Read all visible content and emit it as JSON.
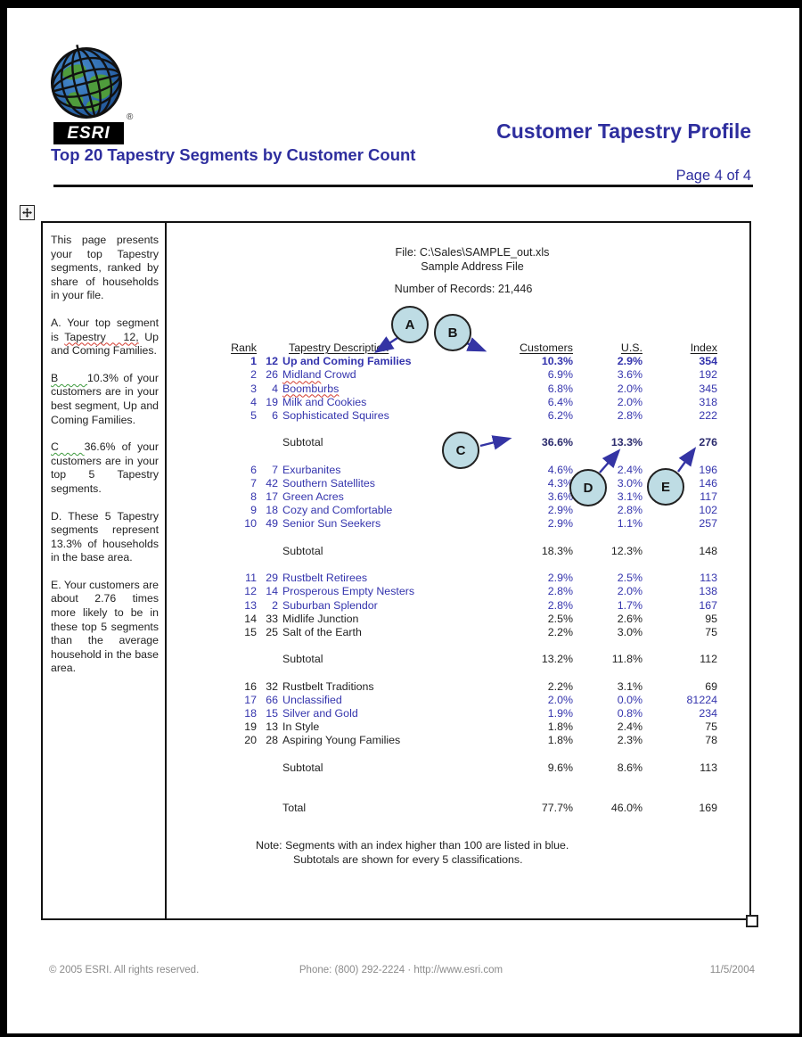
{
  "header": {
    "logo_text": "ESRI",
    "registered_mark": "®",
    "left_title": "Top 20 Tapestry Segments by Customer Count",
    "right_title": "Customer Tapestry Profile",
    "page_indicator": "Page 4 of 4"
  },
  "sidebar": {
    "paragraphs": [
      {
        "parts": [
          {
            "text": "This page presents your top Tapestry segments, ranked by share of households in your file."
          }
        ]
      },
      {
        "parts": [
          {
            "text": "A.  Your top segment is "
          },
          {
            "text": "Tapestry   12,",
            "wavy": "red"
          },
          {
            "text": " Up and Coming Families."
          }
        ]
      },
      {
        "parts": [
          {
            "text": "B      ",
            "wavy": "green"
          },
          {
            "text": "10.3% of your customers are in your best segment, Up and Coming Families."
          }
        ]
      },
      {
        "parts": [
          {
            "text": "C    ",
            "wavy": "green"
          },
          {
            "text": "36.6% of your customers are in your top 5 Tapestry segments."
          }
        ]
      },
      {
        "parts": [
          {
            "text": "D.  These 5 Tapestry segments represent 13.3% of households in the base area."
          }
        ]
      },
      {
        "parts": [
          {
            "text": "E.  Your customers are about 2.76 times more likely to be in these top 5 segments than the average household in the base area."
          }
        ]
      }
    ]
  },
  "document": {
    "file_line": "File: C:\\Sales\\SAMPLE_out.xls",
    "file_subline": "Sample Address File",
    "records_line": "Number of Records: 21,446"
  },
  "table": {
    "headers": {
      "rank": "Rank",
      "description": "Tapestry Description",
      "customers": "Customers",
      "us": "U.S.",
      "index": "Index"
    },
    "rows": [
      {
        "type": "data",
        "rank": "1",
        "code": "12",
        "desc": "Up and Coming Families",
        "customers": "10.3%",
        "us": "2.9%",
        "index": "354",
        "color": "blue",
        "bold": true
      },
      {
        "type": "data",
        "rank": "2",
        "code": "26",
        "desc": "Midland Crowd",
        "wavy_word": "Midland",
        "customers": "6.9%",
        "us": "3.6%",
        "index": "192",
        "color": "blue"
      },
      {
        "type": "data",
        "rank": "3",
        "code": "4",
        "desc": "Boomburbs",
        "wavy_word": "Boomburbs",
        "customers": "6.8%",
        "us": "2.0%",
        "index": "345",
        "color": "blue"
      },
      {
        "type": "data",
        "rank": "4",
        "code": "19",
        "desc": "Milk and Cookies",
        "customers": "6.4%",
        "us": "2.0%",
        "index": "318",
        "color": "blue"
      },
      {
        "type": "data",
        "rank": "5",
        "code": "6",
        "desc": "Sophisticated Squires",
        "customers": "6.2%",
        "us": "2.8%",
        "index": "222",
        "color": "blue"
      },
      {
        "type": "gap"
      },
      {
        "type": "subtotal",
        "label": "Subtotal",
        "customers": "36.6%",
        "us": "13.3%",
        "index": "276",
        "emphasis": true
      },
      {
        "type": "gap"
      },
      {
        "type": "data",
        "rank": "6",
        "code": "7",
        "desc": "Exurbanites",
        "customers": "4.6%",
        "us": "2.4%",
        "index": "196",
        "color": "blue"
      },
      {
        "type": "data",
        "rank": "7",
        "code": "42",
        "desc": "Southern Satellites",
        "customers": "4.3%",
        "us": "3.0%",
        "index": "146",
        "color": "blue"
      },
      {
        "type": "data",
        "rank": "8",
        "code": "17",
        "desc": "Green Acres",
        "customers": "3.6%",
        "us": "3.1%",
        "index": "117",
        "color": "blue"
      },
      {
        "type": "data",
        "rank": "9",
        "code": "18",
        "desc": "Cozy and Comfortable",
        "customers": "2.9%",
        "us": "2.8%",
        "index": "102",
        "color": "blue"
      },
      {
        "type": "data",
        "rank": "10",
        "code": "49",
        "desc": "Senior Sun Seekers",
        "customers": "2.9%",
        "us": "1.1%",
        "index": "257",
        "color": "blue"
      },
      {
        "type": "gap"
      },
      {
        "type": "subtotal",
        "label": "Subtotal",
        "customers": "18.3%",
        "us": "12.3%",
        "index": "148"
      },
      {
        "type": "gap"
      },
      {
        "type": "data",
        "rank": "11",
        "code": "29",
        "desc": "Rustbelt Retirees",
        "customers": "2.9%",
        "us": "2.5%",
        "index": "113",
        "color": "blue"
      },
      {
        "type": "data",
        "rank": "12",
        "code": "14",
        "desc": "Prosperous Empty Nesters",
        "customers": "2.8%",
        "us": "2.0%",
        "index": "138",
        "color": "blue"
      },
      {
        "type": "data",
        "rank": "13",
        "code": "2",
        "desc": "Suburban Splendor",
        "customers": "2.8%",
        "us": "1.7%",
        "index": "167",
        "color": "blue"
      },
      {
        "type": "data",
        "rank": "14",
        "code": "33",
        "desc": "Midlife Junction",
        "customers": "2.5%",
        "us": "2.6%",
        "index": "95",
        "color": "black"
      },
      {
        "type": "data",
        "rank": "15",
        "code": "25",
        "desc": "Salt of the Earth",
        "customers": "2.2%",
        "us": "3.0%",
        "index": "75",
        "color": "black"
      },
      {
        "type": "gap"
      },
      {
        "type": "subtotal",
        "label": "Subtotal",
        "customers": "13.2%",
        "us": "11.8%",
        "index": "112"
      },
      {
        "type": "gap"
      },
      {
        "type": "data",
        "rank": "16",
        "code": "32",
        "desc": "Rustbelt Traditions",
        "customers": "2.2%",
        "us": "3.1%",
        "index": "69",
        "color": "black"
      },
      {
        "type": "data",
        "rank": "17",
        "code": "66",
        "desc": "Unclassified",
        "customers": "2.0%",
        "us": "0.0%",
        "index": "81224",
        "color": "blue"
      },
      {
        "type": "data",
        "rank": "18",
        "code": "15",
        "desc": "Silver and Gold",
        "customers": "1.9%",
        "us": "0.8%",
        "index": "234",
        "color": "blue"
      },
      {
        "type": "data",
        "rank": "19",
        "code": "13",
        "desc": "In Style",
        "customers": "1.8%",
        "us": "2.4%",
        "index": "75",
        "color": "black"
      },
      {
        "type": "data",
        "rank": "20",
        "code": "28",
        "desc": "Aspiring Young Families",
        "customers": "1.8%",
        "us": "2.3%",
        "index": "78",
        "color": "black"
      },
      {
        "type": "gap"
      },
      {
        "type": "subtotal",
        "label": "Subtotal",
        "customers": "9.6%",
        "us": "8.6%",
        "index": "113"
      },
      {
        "type": "gap"
      },
      {
        "type": "gap"
      },
      {
        "type": "total",
        "label": "Total",
        "customers": "77.7%",
        "us": "46.0%",
        "index": "169"
      }
    ],
    "note_label": "Note:",
    "note_lines": [
      "Segments with an index higher than 100 are listed in blue.",
      "Subtotals are shown for every 5 classifications."
    ]
  },
  "annotations": [
    {
      "letter": "A"
    },
    {
      "letter": "B"
    },
    {
      "letter": "C"
    },
    {
      "letter": "D"
    },
    {
      "letter": "E"
    }
  ],
  "colors": {
    "title_blue": "#2e2e9e",
    "table_blue": "#3434ad",
    "emphasis_navy": "#2c2c6e",
    "circle_fill": "#bedce4",
    "arrow_blue": "#3434a4",
    "footer_gray": "#8b8b8b"
  },
  "footer": {
    "copyright": "© 2005 ESRI. All rights reserved.",
    "contact": "Phone: (800) 292-2224 · http://www.esri.com",
    "date": "11/5/2004"
  }
}
